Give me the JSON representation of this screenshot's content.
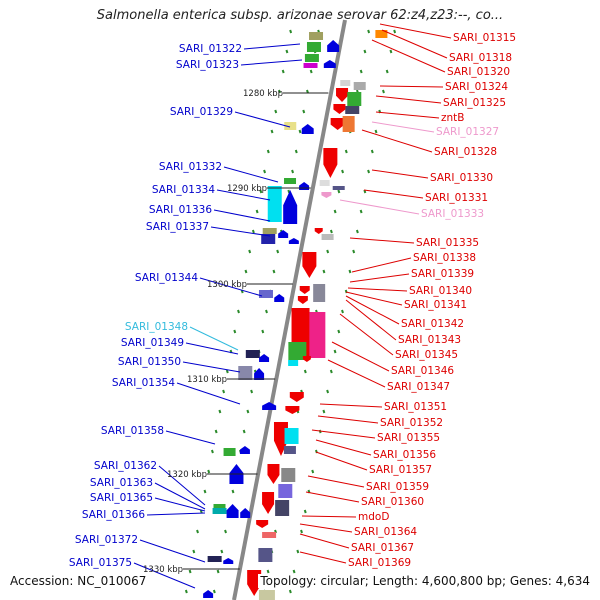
{
  "title": "Salmonella enterica subsp. arizonae serovar 62:z4,z23:--, co...",
  "footer": {
    "accession": "Accession: NC_010067",
    "topology": "Topology: circular; Length: 4,600,800 bp; Genes: 4,634"
  },
  "colors": {
    "left_label": "#0000cc",
    "right_label": "#dd0000",
    "cyan_label": "#33bbdd",
    "pink_label": "#ee99cc",
    "axis": "#888888"
  },
  "kbp_ticks": [
    "1280 kbp",
    "1290 kbp",
    "1300 kbp",
    "1310 kbp",
    "1320 kbp",
    "1330 kbp"
  ],
  "left_labels": [
    {
      "text": "SARI_01322",
      "color": "blue"
    },
    {
      "text": "SARI_01323",
      "color": "blue"
    },
    {
      "text": "SARI_01329",
      "color": "blue"
    },
    {
      "text": "SARI_01332",
      "color": "blue"
    },
    {
      "text": "SARI_01334",
      "color": "blue"
    },
    {
      "text": "SARI_01336",
      "color": "blue"
    },
    {
      "text": "SARI_01337",
      "color": "blue"
    },
    {
      "text": "SARI_01344",
      "color": "blue"
    },
    {
      "text": "SARI_01348",
      "color": "cyan"
    },
    {
      "text": "SARI_01349",
      "color": "blue"
    },
    {
      "text": "SARI_01350",
      "color": "blue"
    },
    {
      "text": "SARI_01354",
      "color": "blue"
    },
    {
      "text": "SARI_01358",
      "color": "blue"
    },
    {
      "text": "SARI_01362",
      "color": "blue"
    },
    {
      "text": "SARI_01363",
      "color": "blue"
    },
    {
      "text": "SARI_01365",
      "color": "blue"
    },
    {
      "text": "SARI_01366",
      "color": "blue"
    },
    {
      "text": "SARI_01372",
      "color": "blue"
    },
    {
      "text": "SARI_01375",
      "color": "blue"
    }
  ],
  "right_labels": [
    {
      "text": "SARI_01315",
      "color": "red"
    },
    {
      "text": "SARI_01318",
      "color": "red"
    },
    {
      "text": "SARI_01320",
      "color": "red"
    },
    {
      "text": "SARI_01324",
      "color": "red"
    },
    {
      "text": "SARI_01325",
      "color": "red"
    },
    {
      "text": "zntB",
      "color": "red"
    },
    {
      "text": "SARI_01327",
      "color": "pink"
    },
    {
      "text": "SARI_01328",
      "color": "red"
    },
    {
      "text": "SARI_01330",
      "color": "red"
    },
    {
      "text": "SARI_01331",
      "color": "red"
    },
    {
      "text": "SARI_01333",
      "color": "pink"
    },
    {
      "text": "SARI_01335",
      "color": "red"
    },
    {
      "text": "SARI_01338",
      "color": "red"
    },
    {
      "text": "SARI_01339",
      "color": "red"
    },
    {
      "text": "SARI_01340",
      "color": "red"
    },
    {
      "text": "SARI_01341",
      "color": "red"
    },
    {
      "text": "SARI_01342",
      "color": "red"
    },
    {
      "text": "SARI_01343",
      "color": "red"
    },
    {
      "text": "SARI_01345",
      "color": "red"
    },
    {
      "text": "SARI_01346",
      "color": "red"
    },
    {
      "text": "SARI_01347",
      "color": "red"
    },
    {
      "text": "SARI_01351",
      "color": "red"
    },
    {
      "text": "SARI_01352",
      "color": "red"
    },
    {
      "text": "SARI_01355",
      "color": "red"
    },
    {
      "text": "SARI_01356",
      "color": "red"
    },
    {
      "text": "SARI_01357",
      "color": "red"
    },
    {
      "text": "SARI_01359",
      "color": "red"
    },
    {
      "text": "SARI_01360",
      "color": "red"
    },
    {
      "text": "mdoD",
      "color": "red"
    },
    {
      "text": "SARI_01364",
      "color": "red"
    },
    {
      "text": "SARI_01367",
      "color": "red"
    },
    {
      "text": "SARI_01369",
      "color": "red"
    }
  ]
}
